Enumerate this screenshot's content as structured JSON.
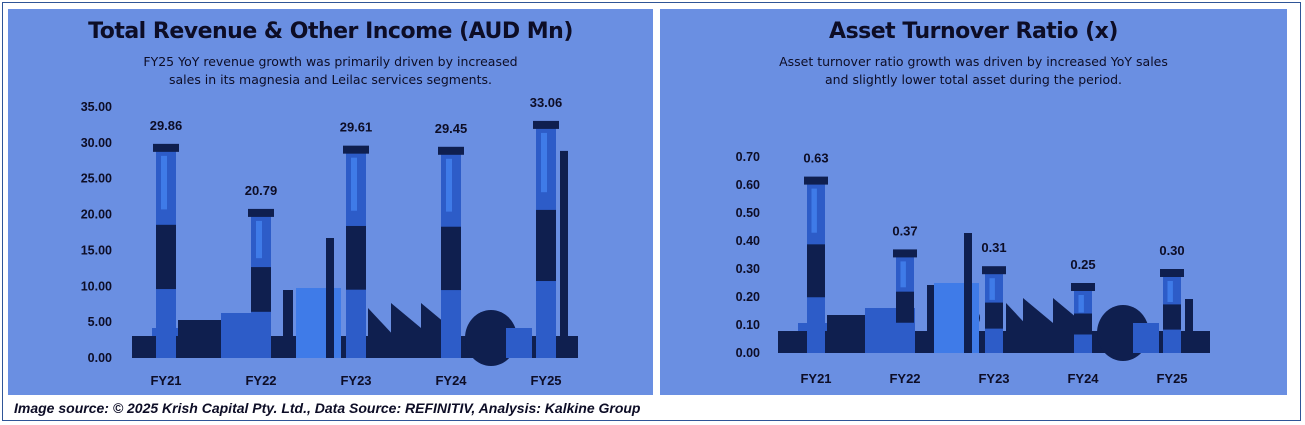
{
  "charts": {
    "revenue": {
      "title": "Total Revenue & Other Income (AUD Mn)",
      "subtitle_line1": "FY25 YoY revenue growth was primarily driven by increased",
      "subtitle_line2": "sales in its magnesia and Leilac services segments."
    },
    "turnover": {
      "title": "Asset Turnover Ratio (x)",
      "subtitle_line1": "Asset turnover ratio growth was driven by increased YoY sales",
      "subtitle_line2": "and slightly lower total asset during the period."
    }
  },
  "footer": {
    "source_text": "Image source: © 2025 Krish Capital Pty. Ltd., Data Source: REFINITIV, Analysis: Kalkine Group"
  },
  "colors": {
    "panel_background": "#6a8fe2",
    "dark_navy": "#0f1f4f",
    "mid_blue": "#2d5cc8",
    "accent_blue": "#3f7be8"
  },
  "chart_data": [
    {
      "type": "bar",
      "title": "Total Revenue & Other Income (AUD Mn)",
      "categories": [
        "FY21",
        "FY22",
        "FY23",
        "FY24",
        "FY25"
      ],
      "values": [
        29.86,
        20.79,
        29.61,
        29.45,
        33.06
      ],
      "data_labels": [
        "29.86",
        "20.79",
        "29.61",
        "29.45",
        "33.06"
      ],
      "yticks": [
        "0.00",
        "5.00",
        "10.00",
        "15.00",
        "20.00",
        "25.00",
        "30.00",
        "35.00"
      ],
      "ylim": [
        0,
        35
      ],
      "grid": false,
      "style": "industrial chimney silhouettes"
    },
    {
      "type": "bar",
      "title": "Asset Turnover Ratio (x)",
      "categories": [
        "FY21",
        "FY22",
        "FY23",
        "FY24",
        "FY25"
      ],
      "values": [
        0.63,
        0.37,
        0.31,
        0.25,
        0.3
      ],
      "data_labels": [
        "0.63",
        "0.37",
        "0.31",
        "0.25",
        "0.30"
      ],
      "yticks": [
        "0.00",
        "0.10",
        "0.20",
        "0.30",
        "0.40",
        "0.50",
        "0.60",
        "0.70"
      ],
      "ylim": [
        0,
        0.7
      ],
      "grid": false,
      "style": "industrial chimney silhouettes"
    }
  ]
}
